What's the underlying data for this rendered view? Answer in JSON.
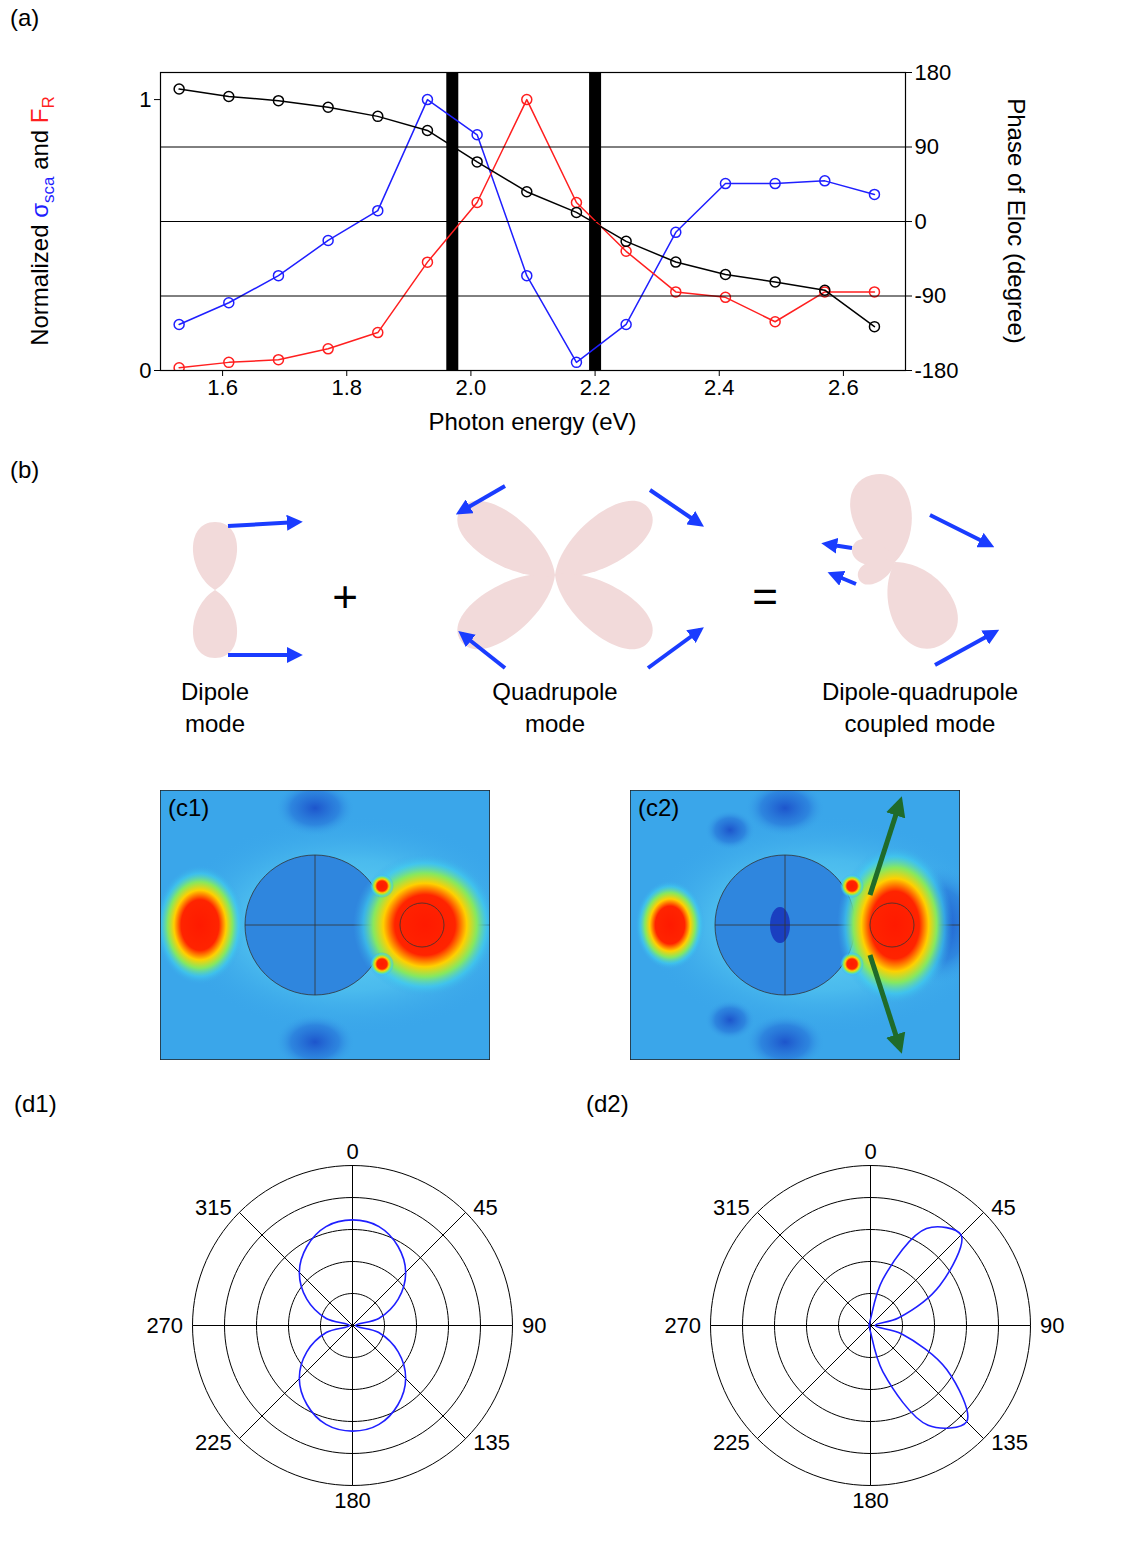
{
  "chart_data": [
    {
      "title": "(a)",
      "type": "line",
      "marker": "circle",
      "x": [
        1.53,
        1.61,
        1.69,
        1.77,
        1.85,
        1.93,
        2.01,
        2.09,
        2.17,
        2.25,
        2.33,
        2.41,
        2.49,
        2.57,
        2.65
      ],
      "xlim": [
        1.5,
        2.7
      ],
      "xticks": [
        1.6,
        1.8,
        {
          "value": 2,
          "label": "2.0"
        },
        2.2,
        2.4,
        2.6
      ],
      "xlabel": "Photon energy (eV)",
      "ylabel": "Normalized σsca and FR",
      "y2label": "Phase of Eloc (degree)",
      "ylim": [
        0,
        1.1
      ],
      "yticks": [
        0,
        1
      ],
      "y2lim": [
        -180,
        180
      ],
      "y2ticks": [
        -180,
        -90,
        0,
        90,
        180
      ],
      "grid": true,
      "highlight_x": [
        1.97,
        2.2
      ],
      "series": [
        {
          "name": "σsca",
          "color": "#1f1fff",
          "values": [
            0.17,
            0.25,
            0.35,
            0.48,
            0.59,
            1.0,
            0.87,
            0.35,
            0.03,
            0.17,
            0.51,
            0.69,
            0.69,
            0.7,
            0.65
          ]
        },
        {
          "name": "FR",
          "color": "#ff1f1f",
          "values": [
            0.01,
            0.03,
            0.04,
            0.08,
            0.14,
            0.4,
            0.62,
            1.0,
            0.62,
            0.44,
            0.29,
            0.27,
            0.18,
            0.29,
            0.29
          ]
        },
        {
          "color": "#000000",
          "axis": "y2",
          "values": [
            160,
            151,
            146,
            138,
            127,
            110,
            72,
            36,
            11,
            -24,
            -49,
            -64,
            -73,
            -83,
            -127
          ]
        }
      ]
    },
    {
      "title": "(d1)",
      "type": "polar",
      "color": "#1f1fff",
      "x": [
        0,
        15,
        30,
        45,
        60,
        75,
        90,
        105,
        120,
        135,
        150,
        165,
        180,
        195,
        210,
        225,
        240,
        255,
        270,
        285,
        300,
        315,
        330,
        345
      ],
      "values": [
        0.66,
        0.64,
        0.57,
        0.47,
        0.33,
        0.17,
        0.02,
        0.17,
        0.33,
        0.47,
        0.57,
        0.64,
        0.66,
        0.64,
        0.57,
        0.47,
        0.33,
        0.17,
        0.02,
        0.17,
        0.33,
        0.47,
        0.57,
        0.64
      ],
      "xlim": [
        0,
        360
      ],
      "xticks": [
        0,
        45,
        90,
        135,
        180,
        225,
        270,
        315
      ],
      "ylim": [
        0,
        1
      ],
      "yticks": [
        0.2,
        0.4,
        0.6,
        0.8,
        1
      ],
      "tick_labels": "x"
    },
    {
      "title": "(d2)",
      "type": "polar",
      "color": "#1f1fff",
      "x": [
        0,
        15,
        30,
        45,
        60,
        75,
        90,
        105,
        120,
        135,
        150,
        165,
        180,
        195,
        210,
        225,
        240,
        255,
        270,
        285,
        300,
        315,
        330,
        345
      ],
      "values": [
        0.04,
        0.3,
        0.7,
        0.8,
        0.5,
        0.18,
        0.03,
        0.2,
        0.55,
        0.85,
        0.72,
        0.3,
        0.04,
        0.02,
        0.01,
        0.01,
        0.01,
        0.01,
        0.01,
        0.01,
        0.01,
        0.01,
        0.01,
        0.02
      ],
      "xlim": [
        0,
        360
      ],
      "xticks": [
        0,
        45,
        90,
        135,
        180,
        225,
        270,
        315
      ],
      "ylim": [
        0,
        1
      ],
      "yticks": [
        0.2,
        0.4,
        0.6,
        0.8,
        1
      ],
      "tick_labels": "x"
    }
  ],
  "diagram": {
    "title": "(b)",
    "terms": [
      {
        "label": [
          "Dipole",
          "mode"
        ]
      },
      {
        "label": [
          "Quadrupole",
          "mode"
        ]
      },
      {
        "label": [
          "Dipole-quadrupole",
          "coupled mode"
        ]
      }
    ],
    "operators": [
      "+",
      "="
    ]
  },
  "field_maps": [
    {
      "title": "(c1)"
    },
    {
      "title": "(c2)"
    }
  ]
}
